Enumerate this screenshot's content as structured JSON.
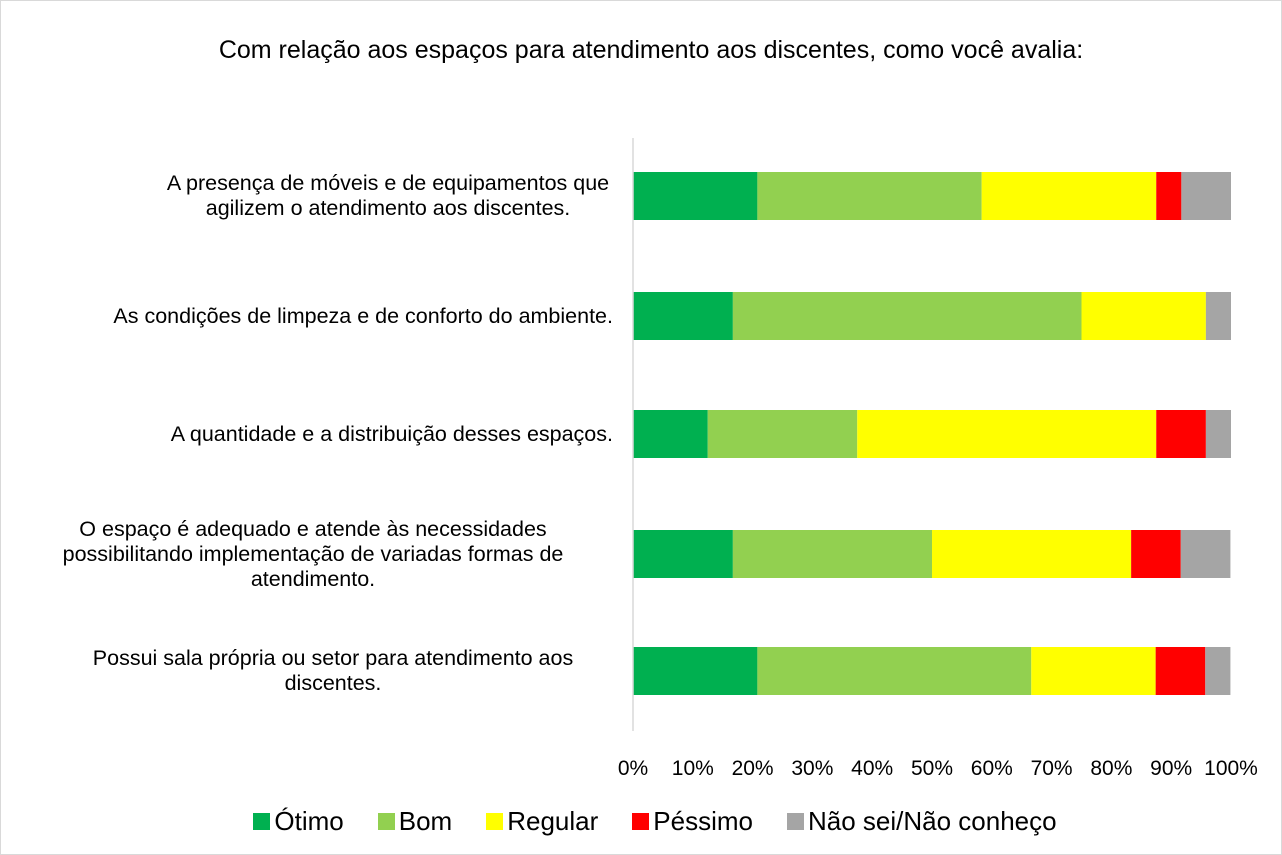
{
  "chart_data": {
    "type": "stacked-barh",
    "title": "Com relação aos espaços para atendimento aos discentes, como você avalia:",
    "categories": [
      "A presença de móveis e de equipamentos que agilizem o atendimento aos discentes.",
      "As condições de limpeza e de conforto do ambiente.",
      "A quantidade e a distribuição desses espaços.",
      "O espaço é adequado e atende às necessidades possibilitando implementação de variadas formas de atendimento.",
      "Possui sala própria ou setor para atendimento aos discentes."
    ],
    "series": [
      {
        "name": "Ótimo",
        "color": "#00b050",
        "values": [
          20.8,
          16.7,
          12.5,
          16.7,
          20.8
        ]
      },
      {
        "name": "Bom",
        "color": "#92d050",
        "values": [
          37.5,
          58.3,
          25.0,
          33.3,
          45.8
        ]
      },
      {
        "name": "Regular",
        "color": "#ffff00",
        "values": [
          29.2,
          20.8,
          50.0,
          33.3,
          20.8
        ]
      },
      {
        "name": "Péssimo",
        "color": "#ff0000",
        "values": [
          4.2,
          0,
          8.3,
          8.3,
          8.3
        ]
      },
      {
        "name": "Não sei/Não conheço",
        "color": "#a5a5a5",
        "values": [
          8.3,
          4.2,
          4.2,
          8.3,
          4.2
        ]
      }
    ],
    "xlim": [
      0,
      100
    ],
    "xticks": [
      {
        "value": 0,
        "label": "0%"
      },
      {
        "value": 10,
        "label": "10%"
      },
      {
        "value": 20,
        "label": "20%"
      },
      {
        "value": 30,
        "label": "30%"
      },
      {
        "value": 40,
        "label": "40%"
      },
      {
        "value": 50,
        "label": "50%"
      },
      {
        "value": 60,
        "label": "60%"
      },
      {
        "value": 70,
        "label": "70%"
      },
      {
        "value": 80,
        "label": "80%"
      },
      {
        "value": 90,
        "label": "90%"
      },
      {
        "value": 100,
        "label": "100%"
      }
    ],
    "legend": "bottom"
  }
}
